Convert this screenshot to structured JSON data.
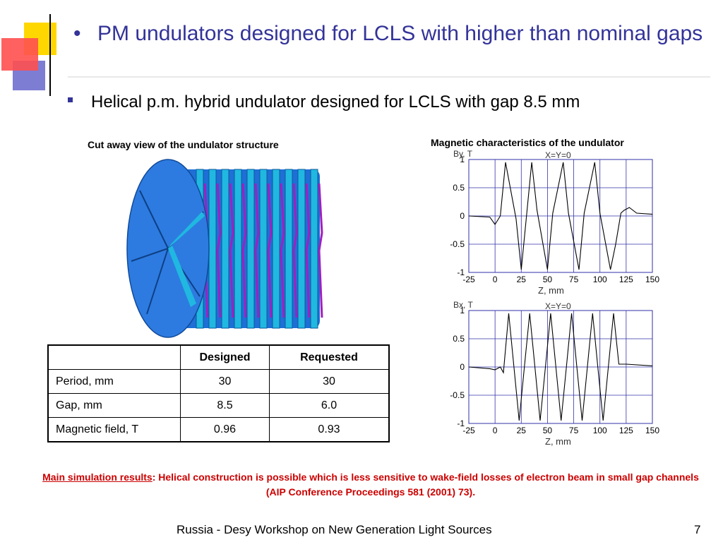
{
  "slide": {
    "title_bullet": "•",
    "title": "PM undulators designed for LCLS with higher than nominal gaps",
    "subtitle": "Helical p.m. hybrid undulator designed for LCLS with gap 8.5 mm",
    "left_caption": "Cut away view of the undulator structure",
    "right_caption": "Magnetic characteristics of the undulator",
    "table": {
      "headers": [
        "",
        "Designed",
        "Requested"
      ],
      "rows": [
        [
          "Period, mm",
          "30",
          "30"
        ],
        [
          "Gap, mm",
          "8.5",
          "6.0"
        ],
        [
          "Magnetic field, T",
          "0.96",
          "0.93"
        ]
      ]
    },
    "result_label": "Main simulation results",
    "result_text": ":  Helical construction is possible which is less sensitive to wake-field losses of electron beam in small gap channels (AIP Conference Proceedings 581 (2001) 73).",
    "footer": "Russia - Desy Workshop on New Generation Light Sources",
    "page_number": "7"
  },
  "colors": {
    "title": "#333399",
    "result": "#cc0000",
    "undulator_blue": "#1e6fd6",
    "undulator_cyan": "#20b8e0",
    "undulator_magenta": "#a020c0",
    "plot_grid": "#3333aa"
  },
  "chart_data": [
    {
      "type": "line",
      "title": "X=Y=0",
      "ylabel": "By, T",
      "xlabel": "Z, mm",
      "xlim": [
        -25,
        150
      ],
      "ylim": [
        -1,
        1
      ],
      "x_ticks": [
        "-25",
        "0",
        "25",
        "50",
        "75",
        "100",
        "125",
        "150"
      ],
      "y_ticks": [
        "1",
        "0.5",
        "0",
        "-0.5",
        "-1"
      ],
      "grid": true,
      "series": [
        {
          "x": [
            -25,
            -5,
            0,
            5,
            10,
            20,
            25,
            35,
            40,
            50,
            55,
            65,
            70,
            80,
            85,
            95,
            100,
            110,
            115,
            120,
            123,
            128,
            135,
            150
          ],
          "y": [
            0,
            -0.02,
            -0.15,
            0,
            0.95,
            -0.05,
            -0.95,
            0.95,
            0.1,
            -0.95,
            0.05,
            0.95,
            0.05,
            -0.95,
            0.05,
            0.95,
            0.05,
            -0.95,
            -0.5,
            0.05,
            0.1,
            0.15,
            0.05,
            0.03
          ]
        }
      ]
    },
    {
      "type": "line",
      "title": "X=Y=0",
      "ylabel": "Bx, T",
      "xlabel": "Z, mm",
      "xlim": [
        -25,
        150
      ],
      "ylim": [
        -1,
        1
      ],
      "x_ticks": [
        "-25",
        "0",
        "25",
        "50",
        "75",
        "100",
        "125",
        "150"
      ],
      "y_ticks": [
        "1",
        "0.5",
        "0",
        "-0.5",
        "-1"
      ],
      "grid": true,
      "series": [
        {
          "x": [
            -25,
            -5,
            0,
            5,
            8,
            13,
            18,
            23,
            28,
            33,
            38,
            43,
            48,
            53,
            58,
            63,
            68,
            73,
            78,
            83,
            88,
            93,
            98,
            103,
            108,
            113,
            118,
            125,
            150
          ],
          "y": [
            0,
            -0.03,
            -0.05,
            0,
            -0.1,
            0.95,
            0,
            -0.95,
            0,
            0.95,
            0,
            -0.95,
            0,
            0.95,
            0,
            -0.95,
            0,
            0.95,
            0,
            -0.95,
            0,
            0.95,
            0,
            -0.95,
            0,
            0.95,
            0.05,
            0.05,
            0.02
          ]
        }
      ]
    }
  ]
}
